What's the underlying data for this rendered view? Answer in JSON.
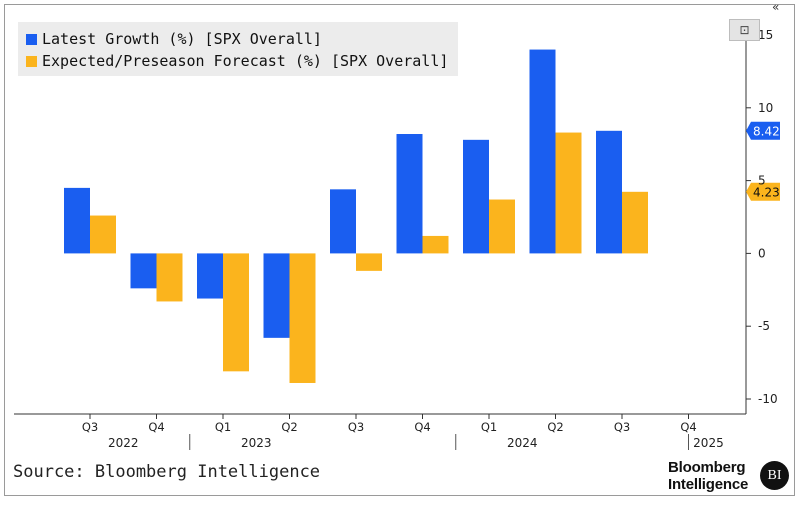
{
  "legend": {
    "latest": "Latest Growth (%) [SPX Overall]",
    "expected": "Expected/Preseason Forecast (%) [SPX Overall]"
  },
  "colors": {
    "latest": "#1a5ef0",
    "expected": "#fbb41d",
    "axis": "#333333"
  },
  "source": "Source: Bloomberg Intelligence",
  "brand": {
    "line1": "Bloomberg",
    "line2": "Intelligence",
    "logo": "BI"
  },
  "icons": {
    "collapse": "«",
    "zoom": "⊡"
  },
  "chart_data": {
    "type": "bar",
    "categories": [
      "Q3 2022",
      "Q4 2022",
      "Q1 2023",
      "Q2 2023",
      "Q3 2023",
      "Q4 2023",
      "Q1 2024",
      "Q2 2024",
      "Q3 2024",
      "Q4 2024"
    ],
    "quarter_labels": [
      "Q3",
      "Q4",
      "Q1",
      "Q2",
      "Q3",
      "Q4",
      "Q1",
      "Q2",
      "Q3",
      "Q4"
    ],
    "year_labels": [
      {
        "label": "2022",
        "center": 0.5
      },
      {
        "label": "2023",
        "center": 2.5
      },
      {
        "label": "2024",
        "center": 6.5
      },
      {
        "label": "2025",
        "center": 9.3
      }
    ],
    "series": [
      {
        "name": "Latest Growth (%) [SPX Overall]",
        "values": [
          4.5,
          -2.4,
          -3.1,
          -5.8,
          4.4,
          8.2,
          7.8,
          14.0,
          8.42,
          null
        ]
      },
      {
        "name": "Expected/Preseason Forecast (%) [SPX Overall]",
        "values": [
          2.6,
          -3.3,
          -8.1,
          -8.9,
          -1.2,
          1.2,
          3.7,
          8.3,
          4.23,
          null
        ]
      }
    ],
    "last_value_labels": [
      "8.42",
      "4.23"
    ],
    "yticks": [
      15,
      10,
      5,
      0,
      -5,
      -10
    ],
    "ytick_labels": [
      "15",
      "10",
      "5",
      "0",
      "-5",
      "-10"
    ],
    "ylim": [
      -10.7,
      15.3
    ],
    "axis_position": "right",
    "title": "",
    "xlabel": "",
    "ylabel": ""
  }
}
